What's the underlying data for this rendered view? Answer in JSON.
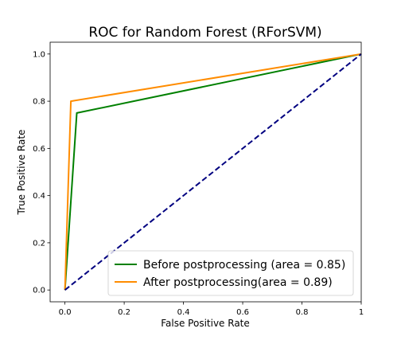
{
  "chart_data": {
    "type": "line",
    "title": "ROC for Random Forest (RForSVM)",
    "xlabel": "False Positive Rate",
    "ylabel": "True Positive Rate",
    "xlim": [
      -0.05,
      1.0
    ],
    "ylim": [
      -0.05,
      1.05
    ],
    "xticks": [
      {
        "value": 0.0,
        "label": "0.0"
      },
      {
        "value": 0.2,
        "label": "0.2"
      },
      {
        "value": 0.4,
        "label": "0.4"
      },
      {
        "value": 0.6,
        "label": "0.6"
      },
      {
        "value": 0.8,
        "label": "0.8"
      },
      {
        "value": 1.0,
        "label": "1"
      }
    ],
    "yticks": [
      {
        "value": 0.0,
        "label": "0.0"
      },
      {
        "value": 0.2,
        "label": "0.2"
      },
      {
        "value": 0.4,
        "label": "0.4"
      },
      {
        "value": 0.6,
        "label": "0.6"
      },
      {
        "value": 0.8,
        "label": "0.8"
      },
      {
        "value": 1.0,
        "label": "1.0"
      }
    ],
    "grid": false,
    "legend_position": "lower-right",
    "series": [
      {
        "name": "Before postprocessing (area = 0.85)",
        "color": "#008000",
        "dashed": false,
        "x": [
          0.0,
          0.04,
          1.0
        ],
        "y": [
          0.0,
          0.75,
          1.0
        ]
      },
      {
        "name": "After postprocessing(area = 0.89)",
        "color": "#ff8c00",
        "dashed": false,
        "x": [
          0.0,
          0.02,
          1.0
        ],
        "y": [
          0.0,
          0.8,
          1.0
        ]
      },
      {
        "name": "",
        "color": "#000080",
        "dashed": true,
        "x": [
          0.0,
          1.0
        ],
        "y": [
          0.0,
          1.0
        ]
      }
    ]
  }
}
